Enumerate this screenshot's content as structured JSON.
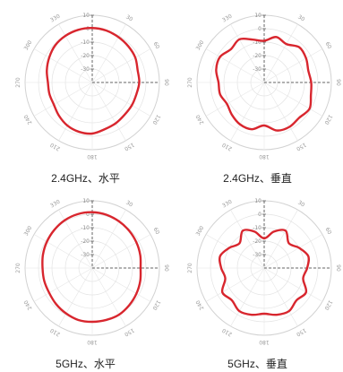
{
  "chart_data": [
    {
      "type": "polar-line",
      "caption": "2.4GHz、水平",
      "r_ticks": [
        "10",
        "0",
        "-10",
        "-20",
        "-30"
      ],
      "angle_labels": [
        "0",
        "90",
        "180",
        "270",
        "30",
        "60",
        "120",
        "150",
        "210",
        "240",
        "300",
        "330"
      ],
      "series_color": "#d8262e",
      "pattern_deg": [
        0,
        15,
        30,
        45,
        60,
        75,
        90,
        105,
        120,
        135,
        150,
        165,
        180,
        195,
        210,
        225,
        240,
        255,
        270,
        285,
        300,
        315,
        330,
        345
      ],
      "pattern_db": [
        0.5,
        0,
        -1,
        -2,
        -3,
        -5,
        -5,
        -6,
        -6,
        -6,
        -5,
        -4,
        -2,
        -2,
        -3,
        -5,
        -7,
        -7,
        -7,
        -5,
        -3,
        -1,
        0,
        0.5
      ]
    },
    {
      "type": "polar-line",
      "caption": "2.4GHz、垂直",
      "r_ticks": [
        "10",
        "0",
        "-10",
        "-20",
        "-30"
      ],
      "angle_labels": [
        "0",
        "90",
        "180",
        "270",
        "30",
        "60",
        "120",
        "150",
        "210",
        "240",
        "300",
        "330"
      ],
      "series_color": "#d8262e",
      "pattern_deg": [
        0,
        15,
        30,
        45,
        60,
        75,
        90,
        105,
        120,
        135,
        150,
        165,
        180,
        195,
        210,
        225,
        240,
        255,
        270,
        285,
        300,
        315,
        330,
        345
      ],
      "pattern_db": [
        -9,
        -5,
        -7,
        -3,
        -4,
        -6,
        -5,
        -4,
        -1,
        -3,
        -2,
        -3,
        -8,
        -4,
        -4,
        -6,
        -8,
        -6,
        -6,
        -3,
        -2,
        -5,
        -3,
        -7
      ]
    },
    {
      "type": "polar-line",
      "caption": "5GHz、水平",
      "r_ticks": [
        "10",
        "0",
        "-10",
        "-20",
        "-30"
      ],
      "angle_labels": [
        "0",
        "90",
        "180",
        "270",
        "30",
        "60",
        "120",
        "150",
        "210",
        "240",
        "300",
        "330"
      ],
      "series_color": "#d8262e",
      "pattern_deg": [
        0,
        15,
        30,
        45,
        60,
        75,
        90,
        105,
        120,
        135,
        150,
        165,
        180,
        195,
        210,
        225,
        240,
        255,
        270,
        285,
        300,
        315,
        330,
        345
      ],
      "pattern_db": [
        1.5,
        1,
        0,
        -1,
        -2,
        -3,
        -4,
        -3,
        -2,
        -1,
        0,
        0,
        0,
        0,
        -1,
        -2,
        -3,
        -3,
        -3,
        -2,
        -1,
        0,
        1,
        1.5
      ]
    },
    {
      "type": "polar-line",
      "caption": "5GHz、垂直",
      "r_ticks": [
        "10",
        "0",
        "-10",
        "-20",
        "-30"
      ],
      "angle_labels": [
        "0",
        "90",
        "180",
        "270",
        "30",
        "60",
        "120",
        "150",
        "210",
        "240",
        "300",
        "330"
      ],
      "series_color": "#d8262e",
      "pattern_deg": [
        0,
        15,
        30,
        45,
        60,
        75,
        90,
        105,
        120,
        135,
        150,
        165,
        180,
        195,
        210,
        225,
        240,
        255,
        270,
        285,
        300,
        315,
        330,
        345
      ],
      "pattern_db": [
        -18,
        -12,
        -8,
        -14,
        -10,
        -6,
        -8,
        -10,
        -4,
        -6,
        -3,
        -4,
        -6,
        -4,
        -3,
        -6,
        -4,
        -10,
        -8,
        -6,
        -10,
        -14,
        -8,
        -12
      ]
    }
  ]
}
